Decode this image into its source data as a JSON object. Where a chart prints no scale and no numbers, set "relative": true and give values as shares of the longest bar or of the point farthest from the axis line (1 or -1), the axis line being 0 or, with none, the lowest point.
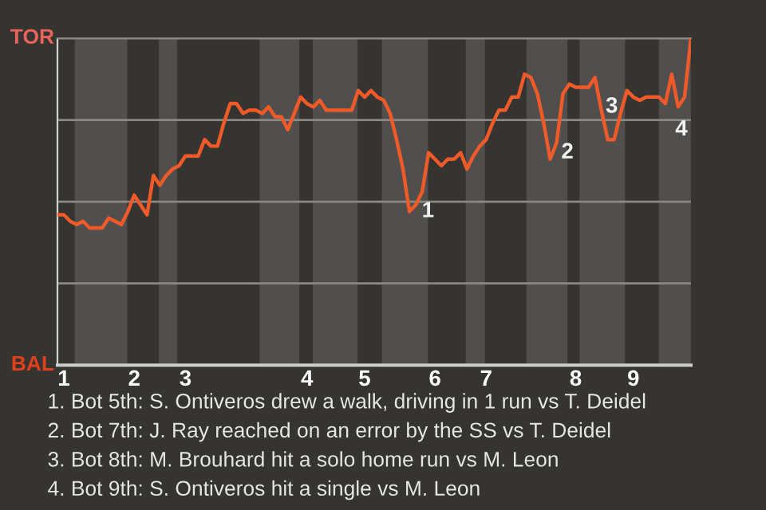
{
  "chart_data": {
    "type": "line",
    "relative": true,
    "categories": [
      null,
      "1",
      null,
      null,
      null,
      null,
      null,
      null,
      null,
      null,
      null,
      null,
      "2",
      null,
      null,
      null,
      null,
      null,
      null,
      null,
      "3",
      null,
      null,
      null,
      null,
      null,
      null,
      null,
      null,
      null,
      null,
      null,
      null,
      null,
      null,
      null,
      null,
      null,
      null,
      "4",
      null,
      null,
      null,
      null,
      null,
      null,
      null,
      null,
      "5",
      null,
      null,
      null,
      null,
      null,
      null,
      null,
      null,
      null,
      null,
      "6",
      null,
      null,
      null,
      null,
      null,
      null,
      null,
      "7",
      null,
      null,
      null,
      null,
      null,
      null,
      null,
      null,
      null,
      null,
      null,
      null,
      null,
      "8",
      null,
      null,
      null,
      null,
      null,
      null,
      null,
      null,
      "9",
      null,
      null,
      null,
      null,
      null,
      null,
      null,
      null,
      null
    ],
    "series": [
      {
        "color": "#f05a28",
        "values": [
          0.46,
          0.46,
          0.44,
          0.43,
          0.44,
          0.42,
          0.42,
          0.42,
          0.45,
          0.44,
          0.43,
          0.47,
          0.52,
          0.49,
          0.46,
          0.58,
          0.55,
          0.58,
          0.6,
          0.61,
          0.64,
          0.64,
          0.64,
          0.69,
          0.67,
          0.67,
          0.74,
          0.8,
          0.8,
          0.77,
          0.78,
          0.78,
          0.77,
          0.79,
          0.76,
          0.76,
          0.72,
          0.77,
          0.82,
          0.8,
          0.79,
          0.81,
          0.78,
          0.78,
          0.78,
          0.78,
          0.78,
          0.84,
          0.82,
          0.84,
          0.82,
          0.81,
          0.77,
          0.69,
          0.6,
          0.47,
          0.49,
          0.53,
          0.65,
          0.63,
          0.61,
          0.63,
          0.63,
          0.65,
          0.6,
          0.64,
          0.67,
          0.69,
          0.74,
          0.78,
          0.78,
          0.82,
          0.82,
          0.89,
          0.88,
          0.83,
          0.74,
          0.63,
          0.68,
          0.83,
          0.86,
          0.85,
          0.85,
          0.85,
          0.88,
          0.78,
          0.69,
          0.69,
          0.77,
          0.84,
          0.82,
          0.81,
          0.82,
          0.82,
          0.82,
          0.8,
          0.89,
          0.79,
          0.82,
          1.0
        ]
      }
    ],
    "grid": "y",
    "annotations": [
      "TOR",
      "BAL",
      "1",
      "2",
      "3",
      "4",
      "1. Bot 5th: S. Ontiveros drew a walk, driving in 1 run vs T. Deidel",
      "2. Bot 7th: J. Ray reached on an error by the SS vs T. Deidel",
      "3. Bot 8th: M. Brouhard hit a solo home run vs M. Leon",
      "4. Bot 9th: S. Ontiveros hit a single vs M. Leon"
    ]
  }
}
